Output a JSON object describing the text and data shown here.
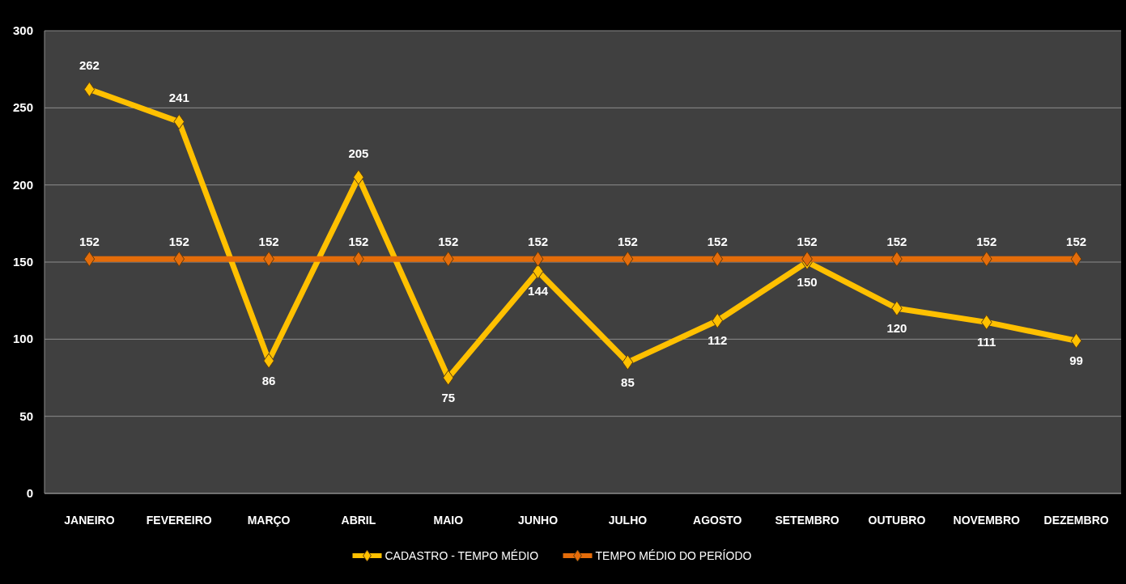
{
  "chart_data": {
    "type": "line",
    "categories": [
      "JANEIRO",
      "FEVEREIRO",
      "MARÇO",
      "ABRIL",
      "MAIO",
      "JUNHO",
      "JULHO",
      "AGOSTO",
      "SETEMBRO",
      "OUTUBRO",
      "NOVEMBRO",
      "DEZEMBRO"
    ],
    "series": [
      {
        "name": "CADASTRO - TEMPO MÉDIO",
        "color": "#ffc000",
        "values": [
          262,
          241,
          86,
          205,
          75,
          144,
          85,
          112,
          150,
          120,
          111,
          99
        ]
      },
      {
        "name": "TEMPO MÉDIO DO PERÍODO",
        "color": "#e46c0a",
        "values": [
          152,
          152,
          152,
          152,
          152,
          152,
          152,
          152,
          152,
          152,
          152,
          152
        ]
      }
    ],
    "ylim": [
      0,
      300
    ],
    "yticks": [
      0,
      50,
      100,
      150,
      200,
      250,
      300
    ],
    "grid": "y",
    "legend": "bottom",
    "marker": "diamond",
    "line_style": "solid",
    "data_labels": true
  }
}
